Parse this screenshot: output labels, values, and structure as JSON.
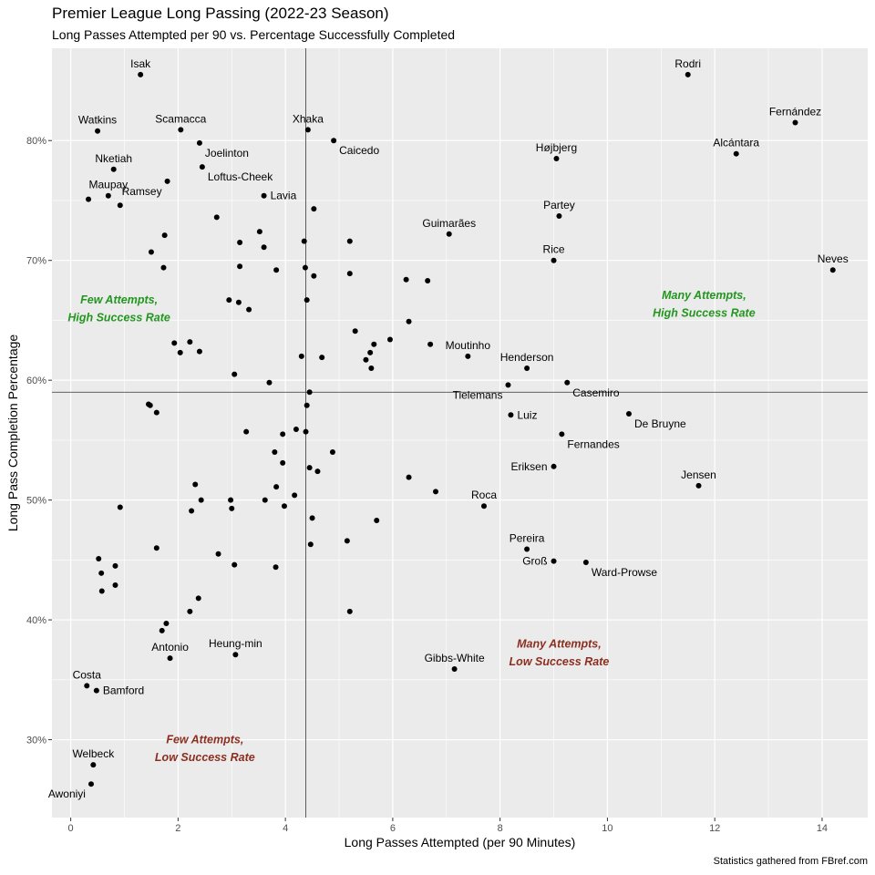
{
  "colors": {
    "panel": "#ebebeb",
    "grid": "#ffffff",
    "point": "#000000",
    "refline": "#4d4d4d",
    "good": "#22961e",
    "bad": "#8b2e1f"
  },
  "chart_data": {
    "type": "scatter",
    "title": "Premier League Long Passing (2022-23 Season)",
    "subtitle": "Long Passes Attempted per 90 vs. Percentage Successfully Completed",
    "xlabel": "Long Passes Attempted (per 90 Minutes)",
    "ylabel": "Long Pass Completion Percentage",
    "caption": "Statistics gathered from FBref.com",
    "xlim": [
      -0.35,
      14.85
    ],
    "ylim": [
      23.5,
      87.7
    ],
    "x_ticks": [
      0,
      2,
      4,
      6,
      8,
      10,
      12,
      14
    ],
    "x_tick_labels": [
      "0",
      "2",
      "4",
      "6",
      "8",
      "10",
      "12",
      "14"
    ],
    "y_ticks": [
      30,
      40,
      50,
      60,
      70,
      80
    ],
    "y_tick_labels": [
      "30%",
      "40%",
      "50%",
      "60%",
      "70%",
      "80%"
    ],
    "grid": true,
    "reference_lines": {
      "x": 4.38,
      "y": 59.0
    },
    "quadrant_labels": [
      {
        "lines": [
          "Few Attempts,",
          "High Success Rate"
        ],
        "x": 0.9,
        "y": 66.1,
        "tone": "good"
      },
      {
        "lines": [
          "Many Attempts,",
          "High Success Rate"
        ],
        "x": 11.8,
        "y": 66.5,
        "tone": "good"
      },
      {
        "lines": [
          "Many Attempts,",
          "Low Success Rate"
        ],
        "x": 9.1,
        "y": 37.4,
        "tone": "bad"
      },
      {
        "lines": [
          "Few Attempts,",
          "Low Success Rate"
        ],
        "x": 2.5,
        "y": 29.4,
        "tone": "bad"
      }
    ],
    "labeled_points": [
      {
        "label": "Isak",
        "x": 1.3,
        "y": 85.5,
        "pos": "above"
      },
      {
        "label": "Rodri",
        "x": 11.5,
        "y": 85.5,
        "pos": "above"
      },
      {
        "label": "Fernández",
        "x": 13.5,
        "y": 81.5,
        "pos": "above"
      },
      {
        "label": "Watkins",
        "x": 0.5,
        "y": 80.8,
        "pos": "above"
      },
      {
        "label": "Scamacca",
        "x": 2.05,
        "y": 80.9,
        "pos": "above"
      },
      {
        "label": "Xhaka",
        "x": 4.42,
        "y": 80.9,
        "pos": "above"
      },
      {
        "label": "Caicedo",
        "x": 4.9,
        "y": 80.0,
        "pos": "below-right"
      },
      {
        "label": "Joelinton",
        "x": 2.4,
        "y": 79.8,
        "pos": "below-right"
      },
      {
        "label": "Alcántara",
        "x": 12.4,
        "y": 78.9,
        "pos": "above"
      },
      {
        "label": "Højbjerg",
        "x": 9.05,
        "y": 78.5,
        "pos": "above"
      },
      {
        "label": "Nketiah",
        "x": 0.8,
        "y": 77.6,
        "pos": "above"
      },
      {
        "label": "Loftus-Cheek",
        "x": 2.45,
        "y": 77.8,
        "pos": "below-right"
      },
      {
        "label": "Maupay",
        "x": 0.7,
        "y": 75.4,
        "pos": "above"
      },
      {
        "label": "Ramsey",
        "x": 1.8,
        "y": 76.6,
        "pos": "below-left"
      },
      {
        "label": "Lavia",
        "x": 3.6,
        "y": 75.4,
        "pos": "right"
      },
      {
        "label": "Partey",
        "x": 9.1,
        "y": 73.7,
        "pos": "above"
      },
      {
        "label": "Guimarães",
        "x": 7.05,
        "y": 72.2,
        "pos": "above"
      },
      {
        "label": "Rice",
        "x": 9.0,
        "y": 70.0,
        "pos": "above"
      },
      {
        "label": "Neves",
        "x": 14.2,
        "y": 69.2,
        "pos": "above"
      },
      {
        "label": "Moutinho",
        "x": 7.4,
        "y": 62.0,
        "pos": "above"
      },
      {
        "label": "Henderson",
        "x": 8.5,
        "y": 61.0,
        "pos": "above"
      },
      {
        "label": "Tielemans",
        "x": 8.15,
        "y": 59.6,
        "pos": "below-left"
      },
      {
        "label": "Casemiro",
        "x": 9.25,
        "y": 59.8,
        "pos": "below-right"
      },
      {
        "label": "Luiz",
        "x": 8.2,
        "y": 57.1,
        "pos": "right"
      },
      {
        "label": "De Bruyne",
        "x": 10.4,
        "y": 57.2,
        "pos": "below-right"
      },
      {
        "label": "Fernandes",
        "x": 9.15,
        "y": 55.5,
        "pos": "below-right"
      },
      {
        "label": "Eriksen",
        "x": 9.0,
        "y": 52.8,
        "pos": "left"
      },
      {
        "label": "Jensen",
        "x": 11.7,
        "y": 51.2,
        "pos": "above"
      },
      {
        "label": "Roca",
        "x": 7.7,
        "y": 49.5,
        "pos": "above"
      },
      {
        "label": "Pereira",
        "x": 8.5,
        "y": 45.9,
        "pos": "above"
      },
      {
        "label": "Groß",
        "x": 9.0,
        "y": 44.9,
        "pos": "left"
      },
      {
        "label": "Ward-Prowse",
        "x": 9.6,
        "y": 44.8,
        "pos": "below-right"
      },
      {
        "label": "Antonio",
        "x": 1.85,
        "y": 36.8,
        "pos": "above"
      },
      {
        "label": "Heung-min",
        "x": 3.07,
        "y": 37.1,
        "pos": "above"
      },
      {
        "label": "Gibbs-White",
        "x": 7.15,
        "y": 35.9,
        "pos": "above"
      },
      {
        "label": "Costa",
        "x": 0.3,
        "y": 34.5,
        "pos": "above"
      },
      {
        "label": "Bamford",
        "x": 0.48,
        "y": 34.1,
        "pos": "right"
      },
      {
        "label": "Welbeck",
        "x": 0.42,
        "y": 27.9,
        "pos": "above"
      },
      {
        "label": "Awoniyi",
        "x": 0.38,
        "y": 26.3,
        "pos": "below-left"
      }
    ],
    "points": [
      [
        0.33,
        75.1
      ],
      [
        0.92,
        74.6
      ],
      [
        1.75,
        72.1
      ],
      [
        1.5,
        70.7
      ],
      [
        1.73,
        69.4
      ],
      [
        2.72,
        73.6
      ],
      [
        3.52,
        72.4
      ],
      [
        3.15,
        71.5
      ],
      [
        3.6,
        71.1
      ],
      [
        3.15,
        69.5
      ],
      [
        3.83,
        69.2
      ],
      [
        4.35,
        71.6
      ],
      [
        4.53,
        74.3
      ],
      [
        5.2,
        71.6
      ],
      [
        4.37,
        69.4
      ],
      [
        4.53,
        68.7
      ],
      [
        5.2,
        68.9
      ],
      [
        6.25,
        68.4
      ],
      [
        6.65,
        68.3
      ],
      [
        2.95,
        66.7
      ],
      [
        3.13,
        66.5
      ],
      [
        3.32,
        65.9
      ],
      [
        4.4,
        66.7
      ],
      [
        6.3,
        64.9
      ],
      [
        5.3,
        64.1
      ],
      [
        5.95,
        63.4
      ],
      [
        5.65,
        63.0
      ],
      [
        6.7,
        63.0
      ],
      [
        5.58,
        62.3
      ],
      [
        5.5,
        61.7
      ],
      [
        5.6,
        61.0
      ],
      [
        4.3,
        62.0
      ],
      [
        4.68,
        61.9
      ],
      [
        1.93,
        63.1
      ],
      [
        2.22,
        63.2
      ],
      [
        2.04,
        62.3
      ],
      [
        2.4,
        62.4
      ],
      [
        3.05,
        60.5
      ],
      [
        3.7,
        59.8
      ],
      [
        4.45,
        59.0
      ],
      [
        1.45,
        58.0
      ],
      [
        1.48,
        57.9
      ],
      [
        1.6,
        57.3
      ],
      [
        4.4,
        57.9
      ],
      [
        3.27,
        55.7
      ],
      [
        3.95,
        55.5
      ],
      [
        4.2,
        55.9
      ],
      [
        4.38,
        55.7
      ],
      [
        3.8,
        54.0
      ],
      [
        4.88,
        54.0
      ],
      [
        3.95,
        53.1
      ],
      [
        4.45,
        52.7
      ],
      [
        4.6,
        52.4
      ],
      [
        6.3,
        51.9
      ],
      [
        6.8,
        50.7
      ],
      [
        2.32,
        51.3
      ],
      [
        3.83,
        51.1
      ],
      [
        4.17,
        50.4
      ],
      [
        2.43,
        50.0
      ],
      [
        2.98,
        50.0
      ],
      [
        3.62,
        50.0
      ],
      [
        2.25,
        49.1
      ],
      [
        3.0,
        49.3
      ],
      [
        3.98,
        49.5
      ],
      [
        0.92,
        49.4
      ],
      [
        4.5,
        48.5
      ],
      [
        5.7,
        48.3
      ],
      [
        5.15,
        46.6
      ],
      [
        4.47,
        46.3
      ],
      [
        1.6,
        46.0
      ],
      [
        2.75,
        45.5
      ],
      [
        0.52,
        45.1
      ],
      [
        0.83,
        44.5
      ],
      [
        3.05,
        44.6
      ],
      [
        3.82,
        44.4
      ],
      [
        0.57,
        43.9
      ],
      [
        0.83,
        42.9
      ],
      [
        0.58,
        42.4
      ],
      [
        2.38,
        41.8
      ],
      [
        2.22,
        40.7
      ],
      [
        5.2,
        40.7
      ],
      [
        1.78,
        39.7
      ],
      [
        1.7,
        39.1
      ]
    ]
  }
}
